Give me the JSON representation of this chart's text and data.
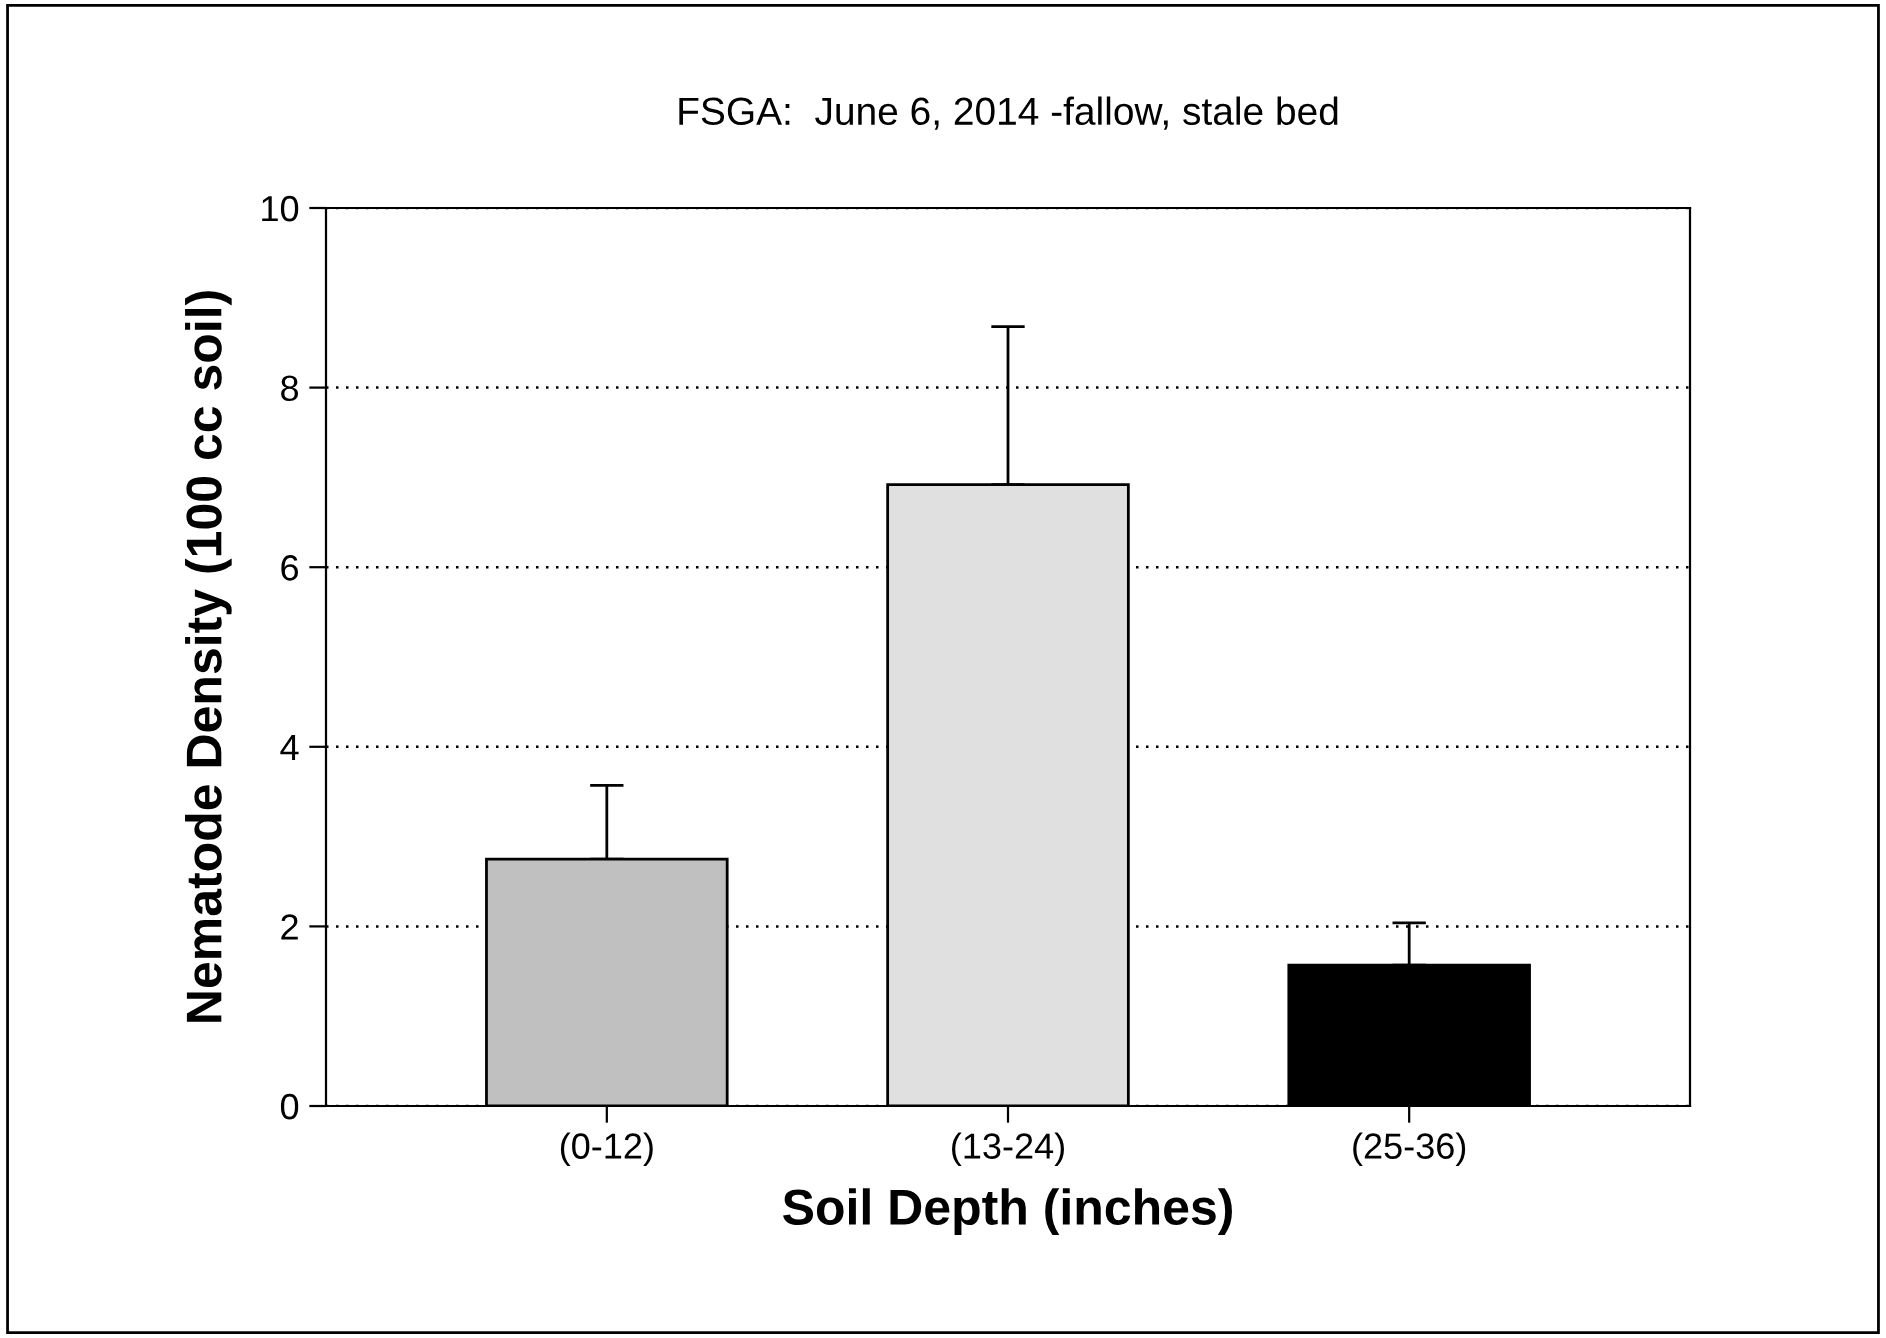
{
  "chart_data": {
    "type": "bar",
    "title": "FSGA:  June 6, 2014 -fallow, stale bed",
    "xlabel": "Soil Depth (inches)",
    "ylabel": "Nematode Density (100 cc soil)",
    "categories": [
      "(0-12)",
      "(13-24)",
      "(25-36)"
    ],
    "values": [
      2.75,
      6.92,
      1.57
    ],
    "colors": [
      "#c0c0c0",
      "#e0e0e0",
      "#000000"
    ],
    "errors": [
      [
        2.75,
        3.57
      ],
      [
        6.92,
        8.68
      ],
      [
        1.57,
        2.04
      ]
    ],
    "ylim": [
      0,
      10
    ],
    "yticks": [
      0,
      2,
      4,
      6,
      8,
      10
    ],
    "grid": "y"
  }
}
